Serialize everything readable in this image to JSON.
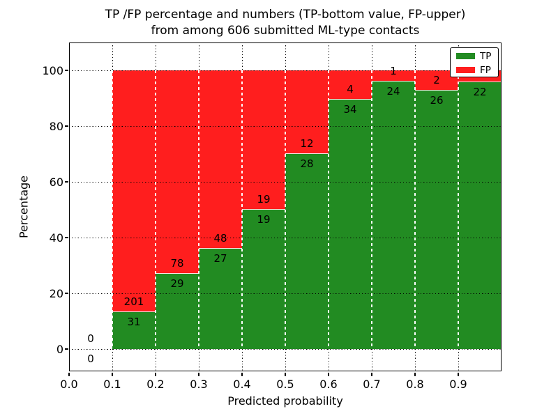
{
  "figure": {
    "background": "#ffffff"
  },
  "chart_data": {
    "type": "bar",
    "stacked": true,
    "units": "percent_of_bin",
    "title_lines": [
      "TP /FP percentage and numbers (TP-bottom value, FP-upper)",
      "from among 606 submitted ML-type contacts"
    ],
    "xlabel": "Predicted probability",
    "ylabel": "Percentage",
    "xlim": [
      0.0,
      1.0
    ],
    "ylim": [
      -8,
      110
    ],
    "xticks": [
      "0.0",
      "0.1",
      "0.2",
      "0.3",
      "0.4",
      "0.5",
      "0.6",
      "0.7",
      "0.8",
      "0.9"
    ],
    "yticks": [
      "0",
      "20",
      "40",
      "60",
      "80",
      "100"
    ],
    "grid": true,
    "total_contacts": 606,
    "legend": {
      "position": "upper right",
      "entries": [
        {
          "label": "TP",
          "color": "#228b22"
        },
        {
          "label": "FP",
          "color": "#ff1e1e"
        }
      ]
    },
    "bins": [
      {
        "range": [
          0.0,
          0.1
        ],
        "tp": 0,
        "fp": 0,
        "tp_pct": 0,
        "fp_pct": 0
      },
      {
        "range": [
          0.1,
          0.2
        ],
        "tp": 31,
        "fp": 201,
        "tp_pct": 13.36,
        "fp_pct": 86.64
      },
      {
        "range": [
          0.2,
          0.3
        ],
        "tp": 29,
        "fp": 78,
        "tp_pct": 27.1,
        "fp_pct": 72.9
      },
      {
        "range": [
          0.3,
          0.4
        ],
        "tp": 27,
        "fp": 48,
        "tp_pct": 36.0,
        "fp_pct": 64.0
      },
      {
        "range": [
          0.4,
          0.5
        ],
        "tp": 19,
        "fp": 19,
        "tp_pct": 50.0,
        "fp_pct": 50.0
      },
      {
        "range": [
          0.5,
          0.6
        ],
        "tp": 28,
        "fp": 12,
        "tp_pct": 70.0,
        "fp_pct": 30.0
      },
      {
        "range": [
          0.6,
          0.7
        ],
        "tp": 34,
        "fp": 4,
        "tp_pct": 89.47,
        "fp_pct": 10.53
      },
      {
        "range": [
          0.7,
          0.8
        ],
        "tp": 24,
        "fp": 1,
        "tp_pct": 96.0,
        "fp_pct": 4.0
      },
      {
        "range": [
          0.8,
          0.9
        ],
        "tp": 26,
        "fp": 2,
        "tp_pct": 92.86,
        "fp_pct": 7.14
      },
      {
        "range": [
          0.9,
          1.0
        ],
        "tp": 22,
        "fp": 1,
        "tp_pct": 95.65,
        "fp_pct": 4.35,
        "fp_label_visible": false
      }
    ],
    "colors": {
      "tp": "#228b22",
      "fp": "#ff1e1e",
      "grid_horizontal": "#000000",
      "grid_vertical_over_bars": "#ffffff",
      "text": "#000000",
      "background": "#ffffff"
    }
  }
}
